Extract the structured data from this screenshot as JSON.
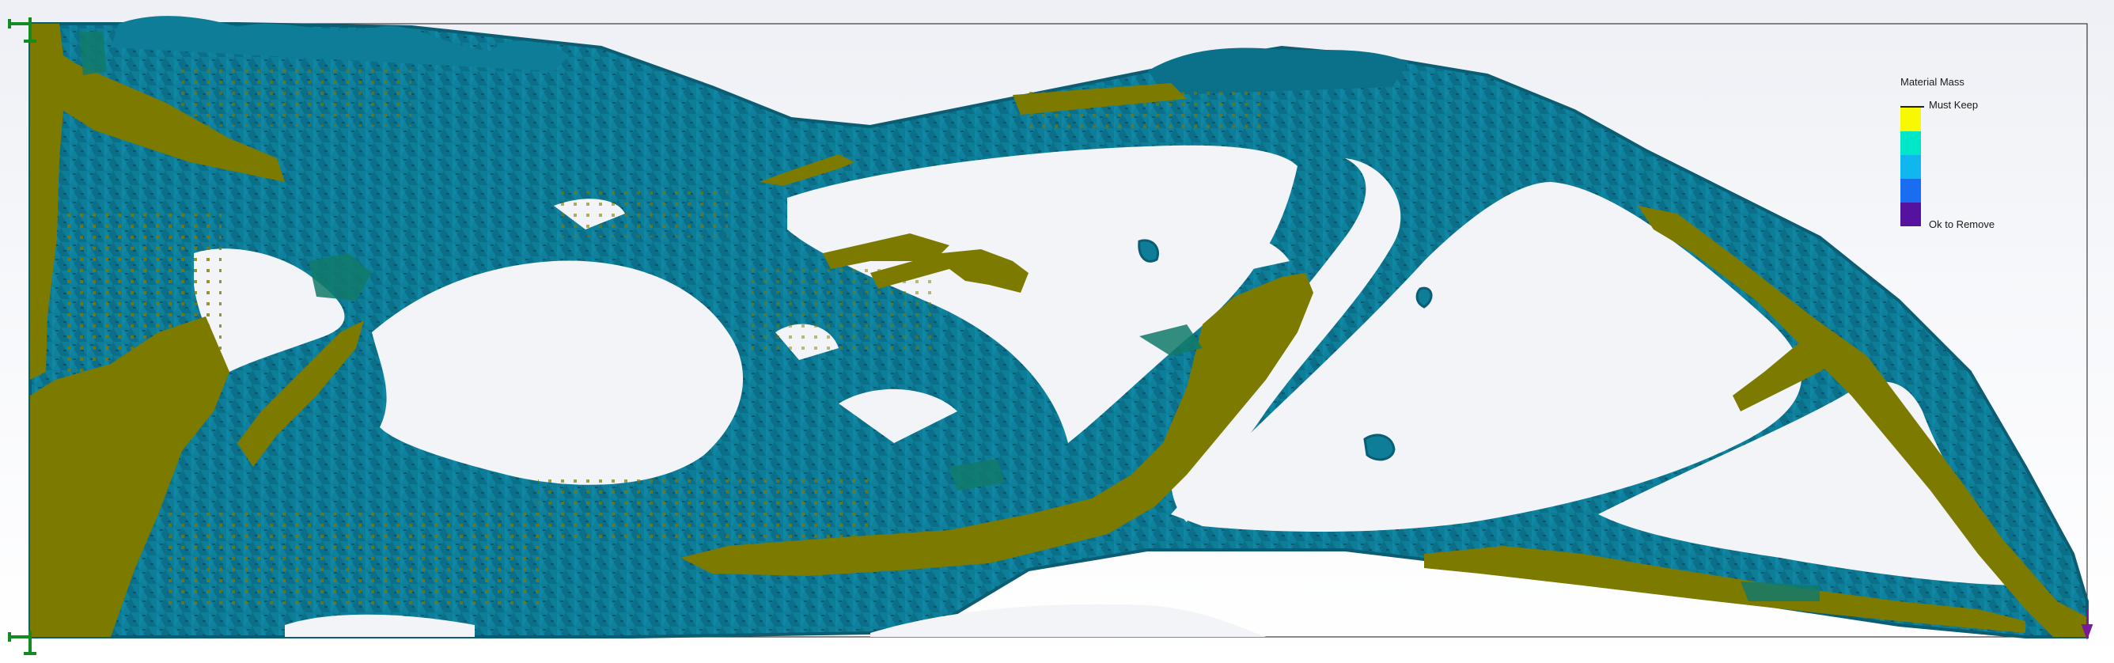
{
  "legend": {
    "title": "Material Mass",
    "max_label": "Must Keep",
    "min_label": "Ok to Remove",
    "bands": [
      "#f8f800",
      "#00e6c9",
      "#10b7ee",
      "#1a6df0",
      "#55129e"
    ]
  },
  "colors": {
    "keep": "#7d7a00",
    "mass": "#0d7d98",
    "edge": "#0b5f77",
    "mid": "#127a6a",
    "frame": "#3a3a3a",
    "fixture": "#138a22",
    "load": "#7a1a9a"
  },
  "icons": [
    "fixture-icon",
    "fixture-icon",
    "load-arrow-icon"
  ]
}
